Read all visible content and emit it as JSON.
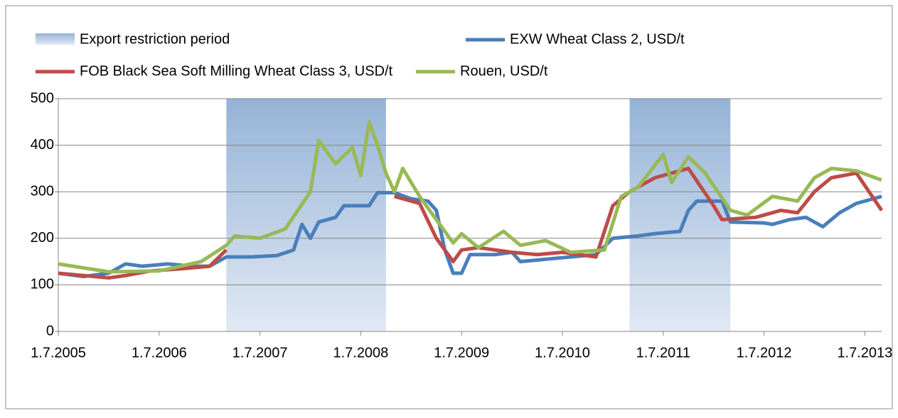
{
  "chart_data": {
    "type": "line",
    "periods_name": "Export restriction period",
    "periods": [
      {
        "start": "2007-03",
        "end": "2008-10"
      },
      {
        "start": "2011-03",
        "end": "2012-03"
      }
    ],
    "xlim": [
      "2005-07",
      "2013-09"
    ],
    "xticks": [
      {
        "value": "2005-07",
        "label": "1.7.2005"
      },
      {
        "value": "2006-07",
        "label": "1.7.2006"
      },
      {
        "value": "2007-07",
        "label": "1.7.2007"
      },
      {
        "value": "2008-07",
        "label": "1.7.2008"
      },
      {
        "value": "2009-07",
        "label": "1.7.2009"
      },
      {
        "value": "2010-07",
        "label": "1.7.2010"
      },
      {
        "value": "2011-07",
        "label": "1.7.2011"
      },
      {
        "value": "2012-07",
        "label": "1.7.2012"
      },
      {
        "value": "2013-07",
        "label": "1.7.2013"
      }
    ],
    "ylim": [
      0,
      500
    ],
    "yticks": [
      0,
      100,
      200,
      300,
      400,
      500
    ],
    "grid": true,
    "series": [
      {
        "name": "EXW Wheat Class 2, USD/t",
        "color": "#4a7ebb",
        "x": [
          "2005-07",
          "2005-10",
          "2006-01",
          "2006-03",
          "2006-05",
          "2006-08",
          "2006-11",
          "2007-01",
          "2007-03",
          "2007-06",
          "2007-09",
          "2007-11",
          "2007-12",
          "2008-01",
          "2008-02",
          "2008-04",
          "2008-05",
          "2008-08",
          "2008-09",
          "2008-11",
          "2009-01",
          "2009-03",
          "2009-04",
          "2009-05",
          "2009-06",
          "2009-07",
          "2009-08",
          "2009-11",
          "2010-01",
          "2010-02",
          "2010-05",
          "2010-08",
          "2010-11",
          "2011-01",
          "2011-04",
          "2011-06",
          "2011-09",
          "2011-10",
          "2011-11",
          "2012-02",
          "2012-03",
          "2012-07",
          "2012-08",
          "2012-10",
          "2012-12",
          "2013-02",
          "2013-04",
          "2013-06",
          "2013-09"
        ],
        "values": [
          125,
          118,
          125,
          145,
          140,
          145,
          140,
          140,
          160,
          160,
          163,
          175,
          230,
          200,
          235,
          245,
          270,
          270,
          298,
          298,
          285,
          280,
          260,
          175,
          125,
          125,
          165,
          165,
          170,
          150,
          155,
          160,
          165,
          200,
          205,
          210,
          215,
          260,
          280,
          280,
          235,
          233,
          230,
          240,
          245,
          225,
          255,
          275,
          290
        ]
      },
      {
        "name": "FOB Black Sea Soft Milling Wheat Class 3, USD/t",
        "color": "#be4b48",
        "x": [
          "2005-07",
          "2006-01",
          "2006-03",
          "2006-06",
          "2006-10",
          "2007-01",
          "2007-03",
          "2008-06",
          "2008-11",
          "2009-02",
          "2009-04",
          "2009-06",
          "2009-07",
          "2009-09",
          "2010-01",
          "2010-04",
          "2010-07",
          "2010-11",
          "2011-01",
          "2011-03",
          "2011-06",
          "2011-08",
          "2011-10",
          "2012-01",
          "2012-02",
          "2012-06",
          "2012-09",
          "2012-11",
          "2013-01",
          "2013-03",
          "2013-06",
          "2013-09"
        ],
        "values": [
          125,
          115,
          120,
          130,
          135,
          140,
          175,
          null,
          290,
          275,
          200,
          150,
          175,
          180,
          170,
          165,
          170,
          160,
          270,
          300,
          330,
          340,
          350,
          270,
          240,
          245,
          260,
          255,
          300,
          330,
          340,
          260
        ]
      },
      {
        "name": "Rouen, USD/t",
        "color": "#98b954",
        "x": [
          "2005-07",
          "2006-01",
          "2006-07",
          "2006-12",
          "2007-03",
          "2007-04",
          "2007-07",
          "2007-10",
          "2008-01",
          "2008-02",
          "2008-04",
          "2008-06",
          "2008-07",
          "2008-08",
          "2008-09",
          "2008-10",
          "2008-11",
          "2008-12",
          "2009-02",
          "2009-04",
          "2009-06",
          "2009-07",
          "2009-09",
          "2009-12",
          "2010-02",
          "2010-05",
          "2010-08",
          "2010-12",
          "2011-02",
          "2011-04",
          "2011-07",
          "2011-08",
          "2011-10",
          "2011-12",
          "2012-03",
          "2012-05",
          "2012-08",
          "2012-11",
          "2013-01",
          "2013-03",
          "2013-06",
          "2013-09"
        ],
        "values": [
          145,
          128,
          130,
          150,
          185,
          205,
          200,
          220,
          300,
          410,
          360,
          395,
          335,
          450,
          400,
          340,
          300,
          350,
          290,
          240,
          190,
          210,
          180,
          215,
          185,
          195,
          170,
          175,
          290,
          310,
          380,
          320,
          375,
          340,
          260,
          250,
          290,
          280,
          330,
          350,
          345,
          325
        ]
      }
    ]
  }
}
